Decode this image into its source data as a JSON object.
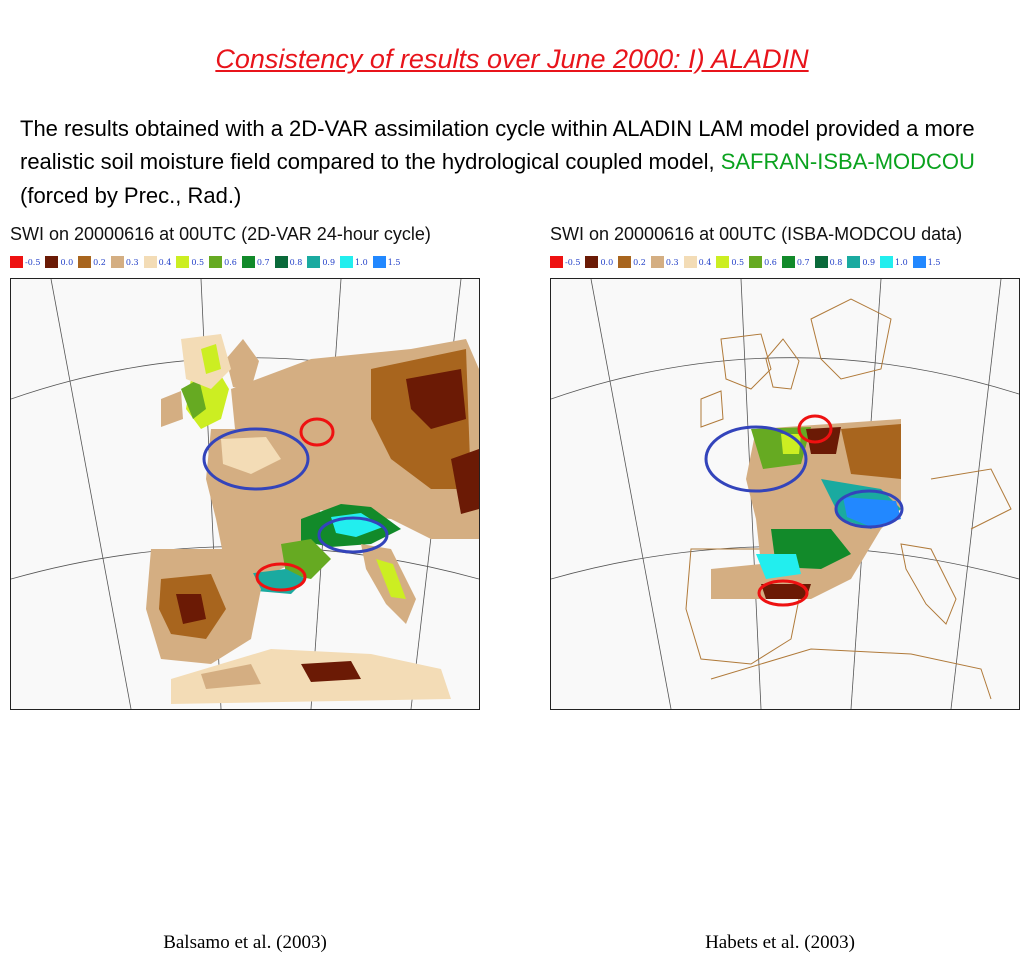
{
  "slide": {
    "title": "Consistency of results over June 2000: I) ALADIN",
    "body_before": "The results obtained with a 2D-VAR assimilation cycle within ALADIN LAM model provided a more realistic soil moisture field compared to the hydrological coupled model, ",
    "body_highlight": "SAFRAN-ISBA-MODCOU",
    "body_after": " (forced by Prec., Rad.)",
    "highlight_color": "#0aa21e"
  },
  "legend": [
    {
      "label": "-0.5",
      "color": "#ee1111"
    },
    {
      "label": "0.0",
      "color": "#6b1a05"
    },
    {
      "label": "0.2",
      "color": "#a8651e"
    },
    {
      "label": "0.3",
      "color": "#d4ae82"
    },
    {
      "label": "0.4",
      "color": "#f3dcb6"
    },
    {
      "label": "0.5",
      "color": "#ccee22"
    },
    {
      "label": "0.6",
      "color": "#66aa22"
    },
    {
      "label": "0.7",
      "color": "#128a2a"
    },
    {
      "label": "0.8",
      "color": "#0a6a3a"
    },
    {
      "label": "0.9",
      "color": "#1aaaa0"
    },
    {
      "label": "1.0",
      "color": "#22eeee"
    },
    {
      "label": "1.5",
      "color": "#2288ff"
    }
  ],
  "maps": {
    "left": {
      "title": "SWI on 20000616 at 00UTC (2D-VAR 24-hour cycle)",
      "caption": "Balsamo et al. (2003)"
    },
    "right": {
      "title": "SWI on 20000616 at 00UTC (ISBA-MODCOU data)",
      "caption": "Habets et al. (2003)"
    }
  }
}
